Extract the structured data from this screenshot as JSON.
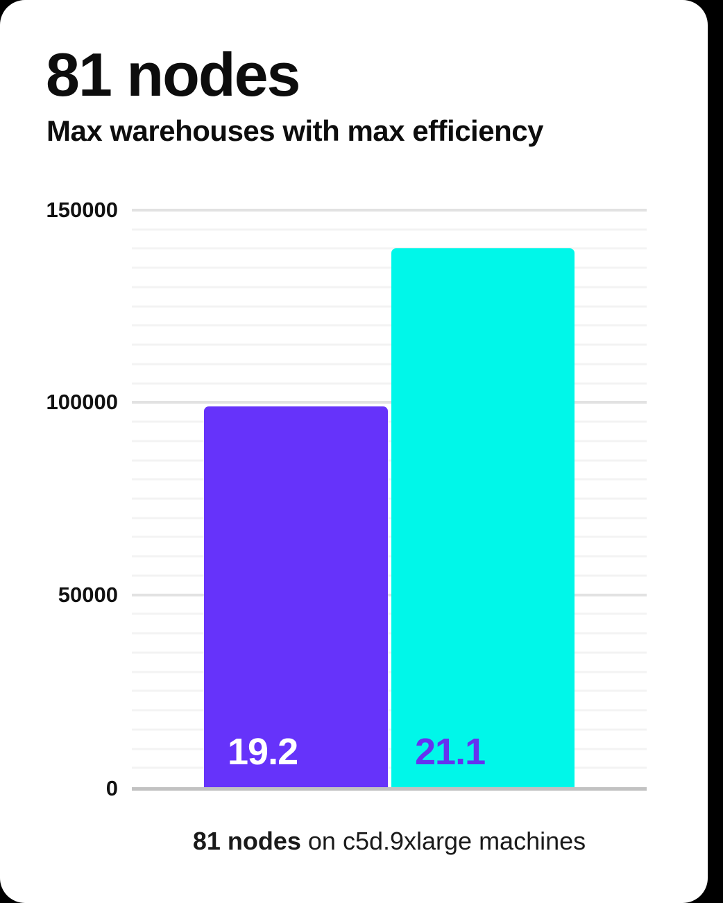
{
  "header": {
    "title": "81 nodes",
    "subtitle": "Max warehouses with max efficiency"
  },
  "caption": {
    "bold": "81 nodes",
    "rest": " on c5d.9xlarge machines"
  },
  "chart_data": {
    "type": "bar",
    "title": "81 nodes",
    "subtitle": "Max warehouses with max efficiency",
    "xlabel": "",
    "ylabel": "",
    "ylim": [
      0,
      150000
    ],
    "ytick_values": [
      0,
      50000,
      100000,
      150000
    ],
    "ytick_labels": [
      "0",
      "50000",
      "100000",
      "150000"
    ],
    "minor_grid_step": 5000,
    "grid": true,
    "legend": "none",
    "series": [
      {
        "name": "bar-1",
        "data_label": "19.2",
        "value": 99000,
        "bar_color": "#6633fa",
        "label_color": "#ffffff"
      },
      {
        "name": "bar-2",
        "data_label": "21.1",
        "value": 140000,
        "bar_color": "#00f7e9",
        "label_color": "#6532f0"
      }
    ],
    "style": {
      "minor_grid_color": "#f3f3f3",
      "major_grid_color": "#e2e2e2",
      "axis_line_color": "#c2c2c2",
      "text_color": "#111111",
      "background": "#ffffff"
    }
  }
}
